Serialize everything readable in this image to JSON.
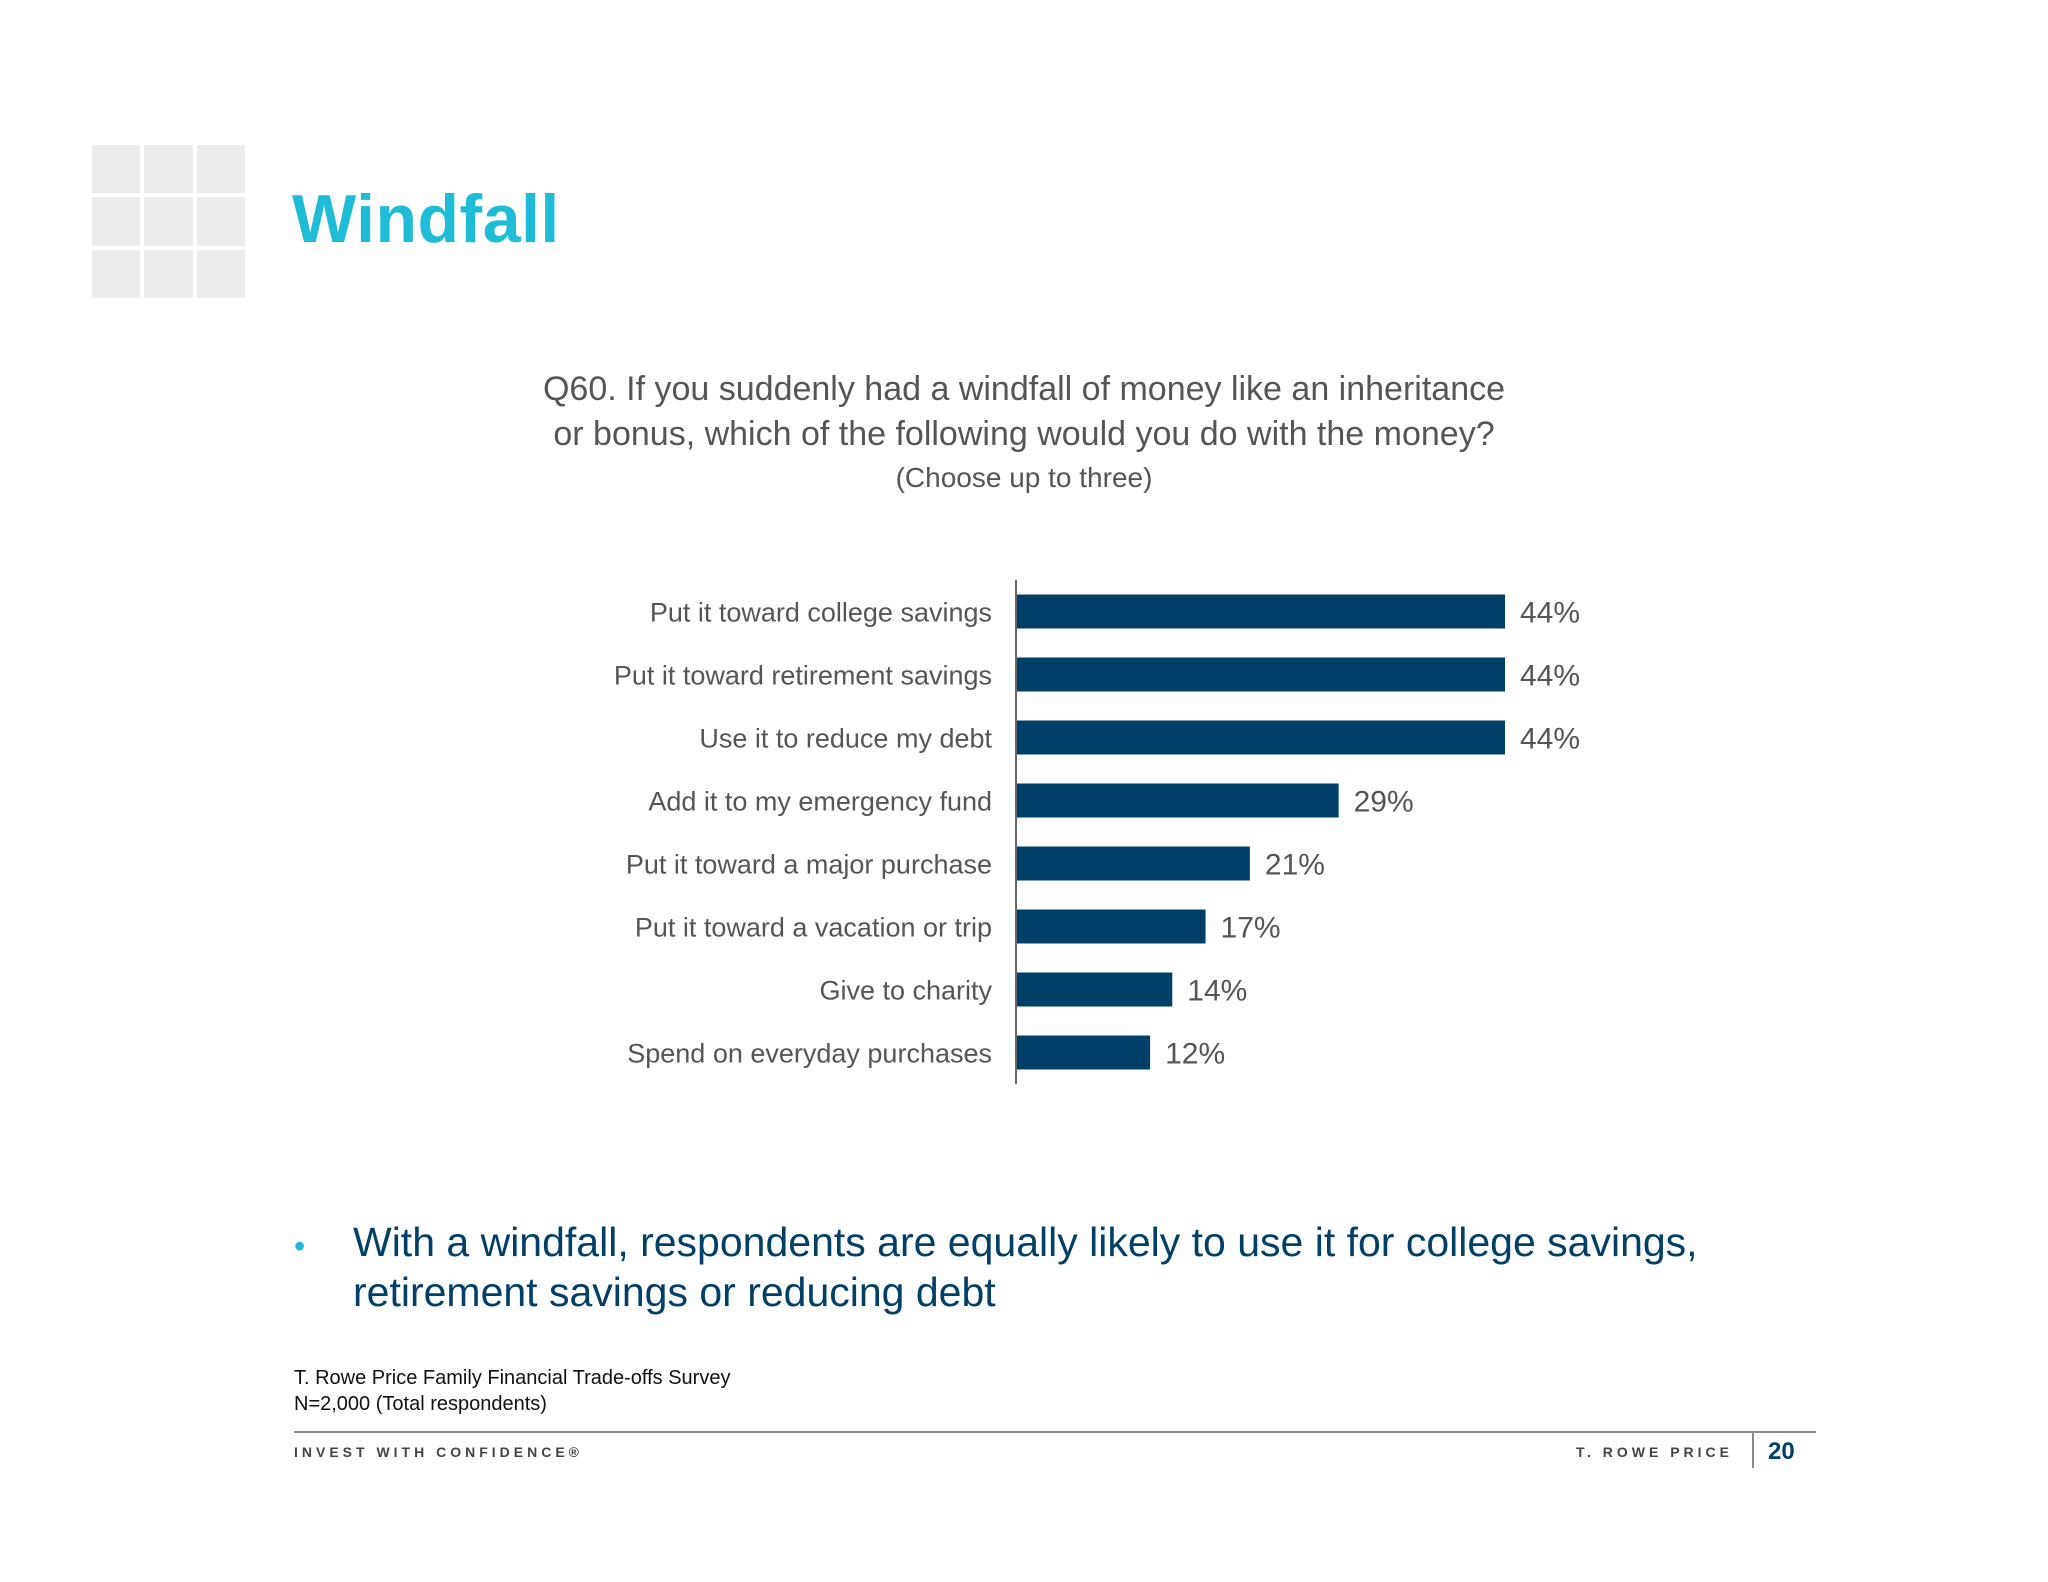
{
  "slide": {
    "title": "Windfall",
    "question_line1": "Q60. If you suddenly had a windfall of money like an inheritance",
    "question_line2": "or bonus, which of the following would you do with the money?",
    "question_note": "(Choose up to three)",
    "takeaway": "With a windfall, respondents are equally likely to use it for college savings, retirement savings or reducing debt",
    "source_line1": "T. Rowe Price Family Financial Trade-offs Survey",
    "source_line2": "N=2,000 (Total respondents)",
    "footer_tagline": "INVEST WITH CONFIDENCE®",
    "footer_brand": "T. ROWE PRICE",
    "page_number": "20"
  },
  "colors": {
    "accent": "#1fbcd8",
    "bar": "#003f68",
    "text_gray": "#555555"
  },
  "chart_data": {
    "type": "bar",
    "orientation": "horizontal",
    "categories": [
      "Put it toward college savings",
      "Put it toward retirement savings",
      "Use it to reduce my debt",
      "Add it to my emergency fund",
      "Put it toward a major purchase",
      "Put it toward a vacation or trip",
      "Give to charity",
      "Spend on everyday purchases"
    ],
    "values": [
      44,
      44,
      44,
      29,
      21,
      17,
      14,
      12
    ],
    "value_labels": [
      "44%",
      "44%",
      "44%",
      "29%",
      "21%",
      "17%",
      "14%",
      "12%"
    ],
    "unit": "%",
    "xlim": [
      0,
      50
    ],
    "grid": false,
    "legend": "none"
  }
}
